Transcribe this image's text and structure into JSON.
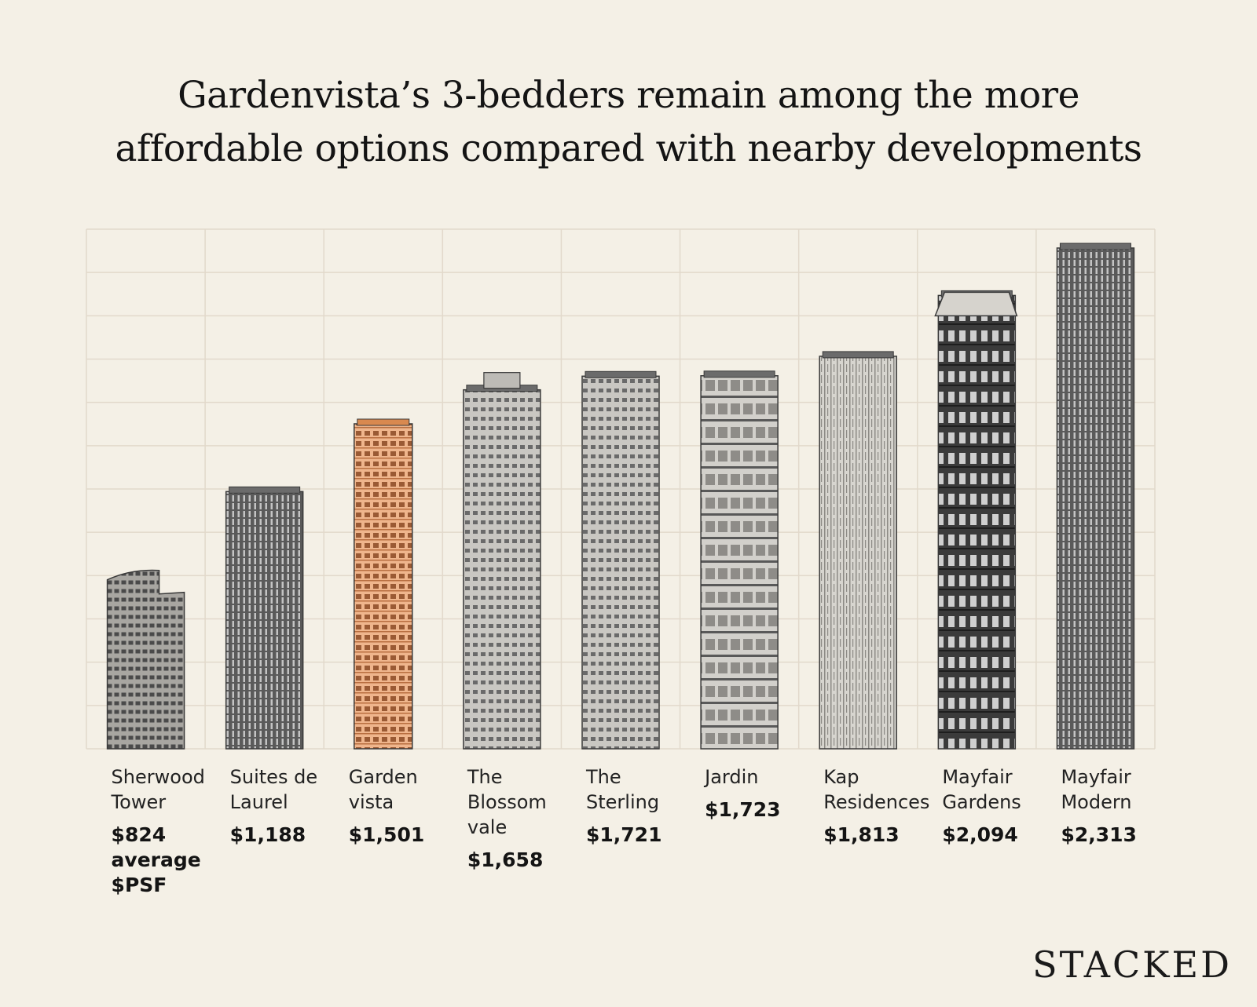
{
  "title": {
    "line1": "Gardenvista’s 3-bedders remain among the more",
    "line2": "affordable options compared with nearby developments"
  },
  "brand": "STACKED",
  "colors": {
    "background": "#f4f0e6",
    "grid": "#e2d9cb",
    "highlight": "#e8a77c",
    "building_light": "#b8b8b8",
    "building_dark": "#3a3a3a"
  },
  "chart_data": {
    "type": "bar",
    "unit": "average $PSF",
    "grid": true,
    "categories": [
      "Sherwood Tower",
      "Suites de Laurel",
      "Garden vista",
      "The Blossom vale",
      "The Sterling",
      "Jardin",
      "Kap Residences",
      "Mayfair Gardens",
      "Mayfair Modern"
    ],
    "category_lines": [
      [
        "Sherwood",
        "Tower"
      ],
      [
        "Suites de",
        "Laurel"
      ],
      [
        "Garden",
        "vista"
      ],
      [
        "The",
        "Blossom",
        "vale"
      ],
      [
        "The",
        "Sterling"
      ],
      [
        "Jardin"
      ],
      [
        "Kap",
        "Residences"
      ],
      [
        "Mayfair",
        "Gardens"
      ],
      [
        "Mayfair",
        "Modern"
      ]
    ],
    "values": [
      824,
      1188,
      1501,
      1658,
      1721,
      1723,
      1813,
      2094,
      2313
    ],
    "value_labels": [
      "$824",
      "$1,188",
      "$1,501",
      "$1,658",
      "$1,721",
      "$1,723",
      "$1,813",
      "$2,094",
      "$2,313"
    ],
    "highlight": "Garden vista",
    "first_label_suffix": [
      "average",
      "$PSF"
    ]
  }
}
